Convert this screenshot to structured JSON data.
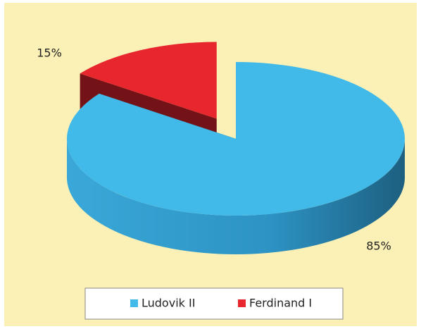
{
  "chart_data": {
    "type": "pie",
    "categories": [
      "Ludovik II",
      "Ferdinand I"
    ],
    "values": [
      85,
      15
    ],
    "value_labels": [
      "85%",
      "15%"
    ],
    "colors": [
      "#41b9e9",
      "#e8262e"
    ],
    "legend": "bottom"
  }
}
